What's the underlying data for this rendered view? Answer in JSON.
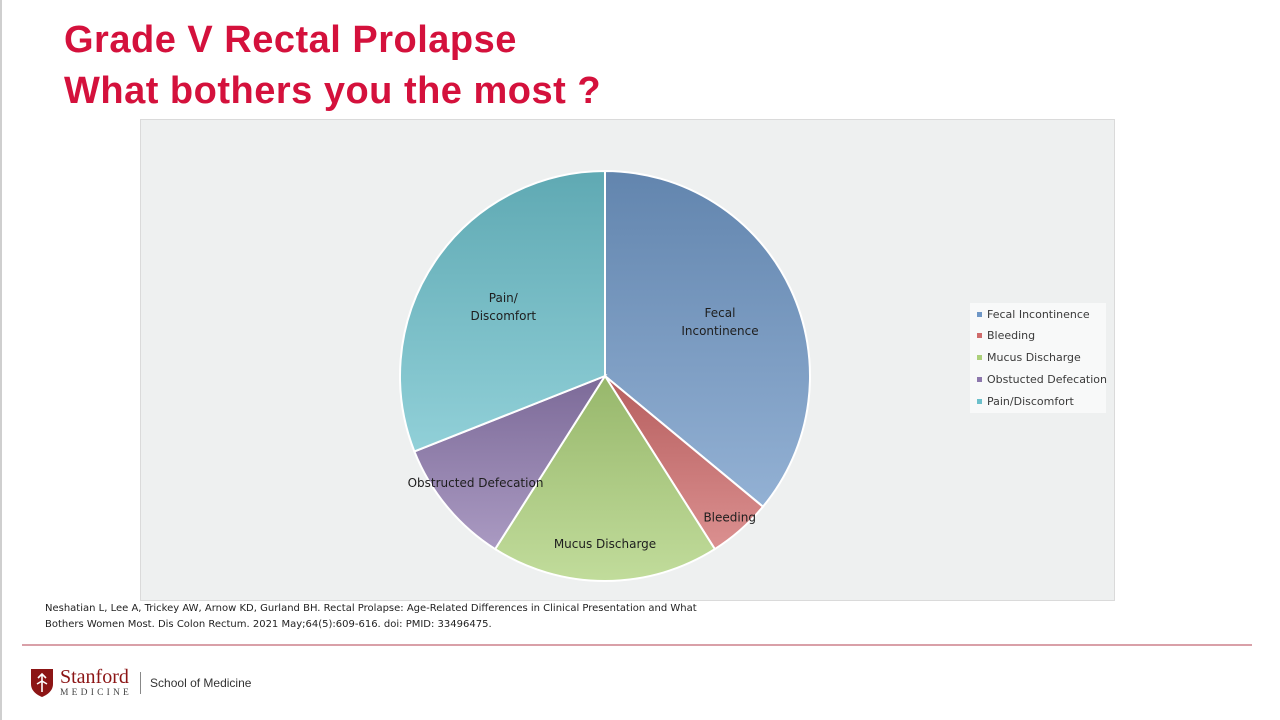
{
  "title_line1": "Grade V Rectal Prolapse",
  "title_line2": "What bothers you the most ?",
  "chart_data": {
    "type": "pie",
    "slices": [
      {
        "label": "Fecal Incontinence",
        "display": [
          "Fecal",
          "Incontinence"
        ],
        "value": 36,
        "color": "#6f97c6",
        "legend": "Fecal Incontinence"
      },
      {
        "label": "Bleeding",
        "display": [
          "Bleeding"
        ],
        "value": 5,
        "color": "#cf6b6b",
        "legend": "Bleeding"
      },
      {
        "label": "Mucus Discharge",
        "display": [
          "Mucus Discharge"
        ],
        "value": 18,
        "color": "#acd07a",
        "legend": "Mucus Discharge"
      },
      {
        "label": "Obstructed Defecation",
        "display": [
          "Obstructed Defecation"
        ],
        "value": 10,
        "color": "#8d78ad",
        "legend": "Obstucted Defecation"
      },
      {
        "label": "Pain/Discomfort",
        "display": [
          "Pain/",
          "Discomfort"
        ],
        "value": 31,
        "color": "#6cc0cb",
        "legend": "Pain/Discomfort"
      }
    ],
    "legend_position": "right"
  },
  "citation_line1": "Neshatian L, Lee A, Trickey AW, Arnow KD, Gurland BH. Rectal Prolapse: Age-Related Differences in Clinical Presentation and What",
  "citation_line2": "Bothers Women Most. Dis Colon Rectum. 2021 May;64(5):609-616. doi: PMID: 33496475.",
  "footer": {
    "logo_line1": "Stanford",
    "logo_line2": "MEDICINE",
    "school": "School of Medicine",
    "brand_color": "#8c1515"
  }
}
